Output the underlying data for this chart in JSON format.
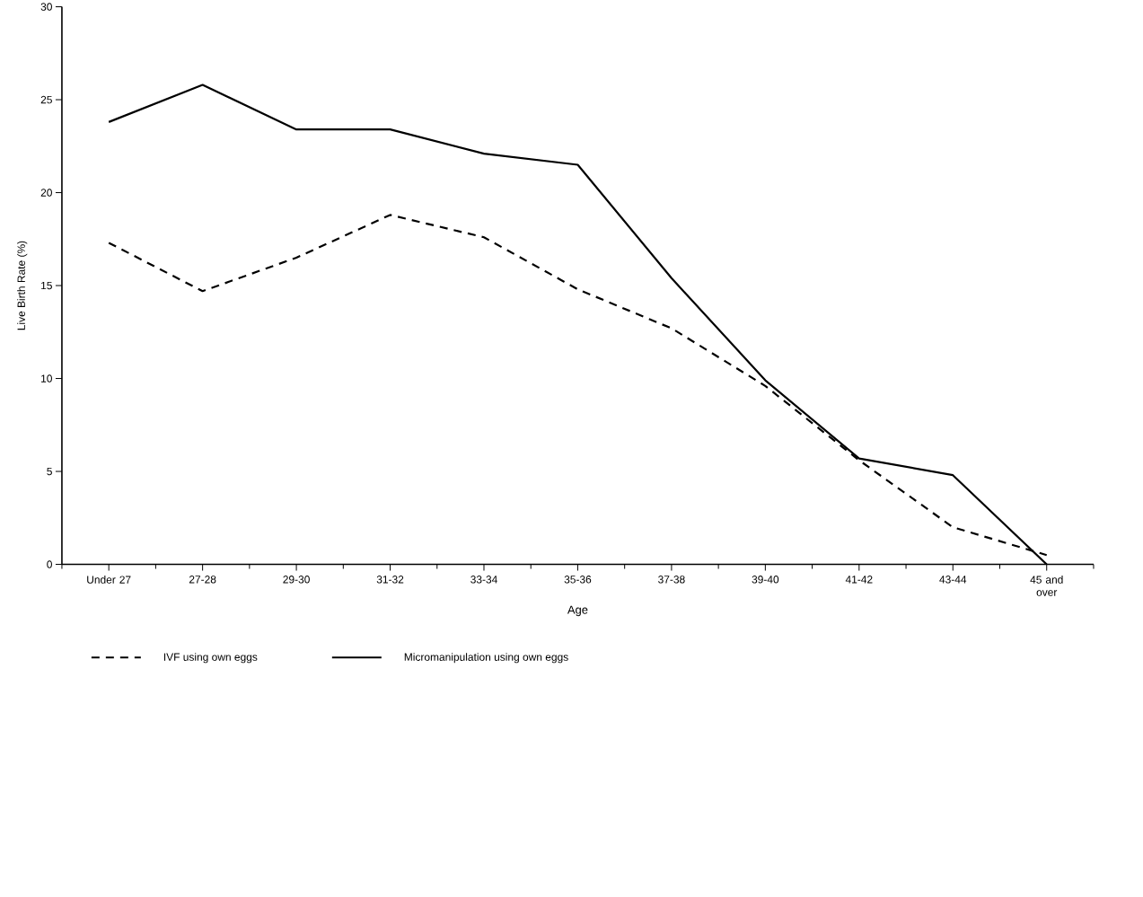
{
  "chart_data": {
    "type": "line",
    "xlabel": "Age",
    "ylabel": "Live Birth Rate (%)",
    "categories": [
      "Under 27",
      "27-28",
      "29-30",
      "31-32",
      "33-34",
      "35-36",
      "37-38",
      "39-40",
      "41-42",
      "43-44",
      "45 and over"
    ],
    "series": [
      {
        "name": "IVF using own eggs",
        "color": "#000000",
        "line_style": "dashed",
        "values": [
          17.3,
          14.7,
          16.5,
          18.8,
          17.6,
          14.8,
          12.7,
          9.6,
          5.6,
          2.0,
          0.5
        ]
      },
      {
        "name": "Micromanipulation using own eggs",
        "color": "#000000",
        "line_style": "solid",
        "values": [
          23.8,
          25.8,
          23.4,
          23.4,
          22.1,
          21.5,
          15.4,
          9.9,
          5.7,
          4.8,
          0
        ]
      }
    ],
    "ylim": [
      0,
      30
    ],
    "yticks": [
      0,
      5,
      10,
      15,
      20,
      25,
      30
    ],
    "legend": "bottom"
  }
}
